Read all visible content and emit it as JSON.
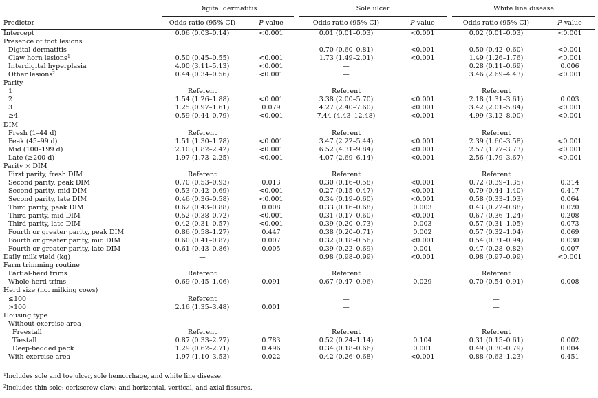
{
  "groups": [
    "Digital dermatitis",
    "Sole ulcer",
    "White line disease"
  ],
  "columns": {
    "predictor": "Predictor",
    "or": "Odds ratio (95% CI)",
    "p_prefix": "P",
    "p_suffix": "-value"
  },
  "rows": [
    {
      "label": "Intercept",
      "level": 0,
      "v": [
        "0.06 (0.03–0.14)",
        "<0.001",
        "0.01 (0.01–0.03)",
        "<0.001",
        "0.02 (0.01–0.03)",
        "<0.001"
      ]
    },
    {
      "label": "Presence of foot lesions",
      "level": 0,
      "v": [
        "",
        "",
        "",
        "",
        "",
        ""
      ]
    },
    {
      "label": "Digital dermatitis",
      "level": 1,
      "v": [
        "—",
        "",
        "0.70 (0.60–0.81)",
        "<0.001",
        "0.50 (0.42–0.60)",
        "<0.001"
      ]
    },
    {
      "label": "Claw horn lesions",
      "sup": "1",
      "level": 1,
      "v": [
        "0.50 (0.45–0.55)",
        "<0.001",
        "1.73 (1.49–2.01)",
        "<0.001",
        "1.49 (1.26–1.76)",
        "<0.001"
      ]
    },
    {
      "label": "Interdigital hyperplasia",
      "level": 1,
      "v": [
        "4.00 (3.11–5.13)",
        "<0.001",
        "—",
        "",
        "0.28 (0.11–0.69)",
        "0.006"
      ]
    },
    {
      "label": "Other lesions",
      "sup": "2",
      "level": 1,
      "v": [
        "0.44 (0.34–0.56)",
        "<0.001",
        "—",
        "",
        "3.46 (2.69–4.43)",
        "<0.001"
      ]
    },
    {
      "label": "Parity",
      "level": 0,
      "v": [
        "",
        "",
        "",
        "",
        "",
        ""
      ]
    },
    {
      "label": "1",
      "level": 1,
      "v": [
        "Referent",
        "",
        "Referent",
        "",
        "Referent",
        ""
      ]
    },
    {
      "label": "2",
      "level": 1,
      "v": [
        "1.54 (1.26–1.88)",
        "<0.001",
        "3.38 (2.00–5.70)",
        "<0.001",
        "2.18 (1.31–3.61)",
        "0.003"
      ]
    },
    {
      "label": "3",
      "level": 1,
      "v": [
        "1.25 (0.97–1.61)",
        "0.079",
        "4.27 (2.40–7.60)",
        "<0.001",
        "3.42 (2.01–5.84)",
        "<0.001"
      ]
    },
    {
      "label": "≥4",
      "level": 1,
      "v": [
        "0.59 (0.44–0.79)",
        "<0.001",
        "7.44 (4.43–12.48)",
        "<0.001",
        "4.99 (3.12–8.00)",
        "<0.001"
      ]
    },
    {
      "label": "DIM",
      "level": 0,
      "v": [
        "",
        "",
        "",
        "",
        "",
        ""
      ]
    },
    {
      "label": "Fresh (1–44 d)",
      "level": 1,
      "v": [
        "Referent",
        "",
        "Referent",
        "",
        "Referent",
        ""
      ]
    },
    {
      "label": "Peak (45–99 d)",
      "level": 1,
      "v": [
        "1.51 (1.30–1.78)",
        "<0.001",
        "3.47 (2.22–5.44)",
        "<0.001",
        "2.39 (1.60–3.58)",
        "<0.001"
      ]
    },
    {
      "label": "Mid (100–199 d)",
      "level": 1,
      "v": [
        "2.10 (1.82–2.42)",
        "<0.001",
        "6.52 (4.31–9.84)",
        "<0.001",
        "2.57 (1.77–3.73)",
        "<0.001"
      ]
    },
    {
      "label": "Late (≥200 d)",
      "level": 1,
      "v": [
        "1.97 (1.73–2.25)",
        "<0.001",
        "4.07 (2.69–6.14)",
        "<0.001",
        "2.56 (1.79–3.67)",
        "<0.001"
      ]
    },
    {
      "label": "Parity × DIM",
      "level": 0,
      "v": [
        "",
        "",
        "",
        "",
        "",
        ""
      ]
    },
    {
      "label": "First parity, fresh DIM",
      "level": 1,
      "v": [
        "Referent",
        "",
        "Referent",
        "",
        "Referent",
        ""
      ]
    },
    {
      "label": "Second parity, peak DIM",
      "level": 1,
      "v": [
        "0.70 (0.53–0.93)",
        "0.013",
        "0.30 (0.16–0.58)",
        "<0.001",
        "0.72 (0.39–1.35)",
        "0.314"
      ]
    },
    {
      "label": "Second parity, mid DIM",
      "level": 1,
      "v": [
        "0.53 (0.42–0.69)",
        "<0.001",
        "0.27 (0.15–0.47)",
        "<0.001",
        "0.79 (0.44–1.40)",
        "0.417"
      ]
    },
    {
      "label": "Second parity, late DIM",
      "level": 1,
      "v": [
        "0.46 (0.36–0.58)",
        "<0.001",
        "0.34 (0.19–0.60)",
        "<0.001",
        "0.58 (0.33–1.03)",
        "0.064"
      ]
    },
    {
      "label": "Third parity, peak DIM",
      "level": 1,
      "v": [
        "0.62 (0.43–0.88)",
        "0.008",
        "0.33 (0.16–0.68)",
        "0.003",
        "0.43 (0.22–0.88)",
        "0.020"
      ]
    },
    {
      "label": "Third parity, mid DIM",
      "level": 1,
      "v": [
        "0.52 (0.38–0.72)",
        "<0.001",
        "0.31 (0.17–0.60)",
        "<0.001",
        "0.67 (0.36–1.24)",
        "0.208"
      ]
    },
    {
      "label": "Third parity, late DIM",
      "level": 1,
      "v": [
        "0.42 (0.31–0.57)",
        "<0.001",
        "0.39 (0.20–0.73)",
        "0.003",
        "0.57 (0.31–1.05)",
        "0.073"
      ]
    },
    {
      "label": "Fourth or greater parity, peak  DIM",
      "level": 1,
      "v": [
        "0.86 (0.58–1.27)",
        "0.447",
        "0.38 (0.20–0.71)",
        "0.002",
        "0.57 (0.32–1.04)",
        "0.069"
      ]
    },
    {
      "label": "Fourth or greater parity, mid DIM",
      "level": 1,
      "v": [
        "0.60 (0.41–0.87)",
        "0.007",
        "0.32 (0.18–0.56)",
        "<0.001",
        "0.54 (0.31–0.94)",
        "0.030"
      ]
    },
    {
      "label": "Fourth or greater parity, late DIM",
      "level": 1,
      "v": [
        "0.61 (0.43–0.86)",
        "0.005",
        "0.39 (0.22–0.69)",
        "0.001",
        "0.47 (0.28–0.82)",
        "0.007"
      ]
    },
    {
      "label": "Daily milk yield (kg)",
      "level": 0,
      "v": [
        "—",
        "",
        "0.98 (0.98–0.99)",
        "<0.001",
        "0.98 (0.97–0.99)",
        "<0.001"
      ]
    },
    {
      "label": "Farm trimming routine",
      "level": 0,
      "v": [
        "",
        "",
        "",
        "",
        "",
        ""
      ]
    },
    {
      "label": "Partial-herd trims",
      "level": 1,
      "v": [
        "Referent",
        "",
        "Referent",
        "",
        "Referent",
        ""
      ]
    },
    {
      "label": "Whole-herd trims",
      "level": 1,
      "v": [
        "0.69 (0.45–1.06)",
        "0.091",
        "0.67 (0.47–0.96)",
        "0.029",
        "0.70 (0.54–0.91)",
        "0.008"
      ]
    },
    {
      "label": "Herd size (no. milking cows)",
      "level": 0,
      "v": [
        "",
        "",
        "",
        "",
        "",
        ""
      ]
    },
    {
      "label": "≤100",
      "level": 1,
      "v": [
        "Referent",
        "",
        "—",
        "",
        "—",
        ""
      ]
    },
    {
      "label": ">100",
      "level": 1,
      "v": [
        "2.16 (1.35–3.48)",
        "0.001",
        "—",
        "",
        "—",
        ""
      ]
    },
    {
      "label": "Housing type",
      "level": 0,
      "v": [
        "",
        "",
        "",
        "",
        "",
        ""
      ]
    },
    {
      "label": "Without exercise area",
      "level": 1,
      "v": [
        "",
        "",
        "",
        "",
        "",
        ""
      ]
    },
    {
      "label": "Freestall",
      "level": 2,
      "v": [
        "Referent",
        "",
        "Referent",
        "",
        "Referent",
        ""
      ]
    },
    {
      "label": "Tiestall",
      "level": 2,
      "v": [
        "0.87 (0.33–2.27)",
        "0.783",
        "0.52 (0.24–1.14)",
        "0.104",
        "0.31 (0.15–0.61)",
        "0.002"
      ]
    },
    {
      "label": "Deep-bedded pack",
      "level": 2,
      "v": [
        "1.29 (0.62–2.71)",
        "0.496",
        "0.34 (0.18–0.66)",
        "0.001",
        "0.49 (0.30–0.79)",
        "0.004"
      ]
    },
    {
      "label": "With exercise area",
      "level": 1,
      "v": [
        "1.97 (1.10–3.53)",
        "0.022",
        "0.42 (0.26–0.68)",
        "<0.001",
        "0.88 (0.63–1.23)",
        "0.451"
      ]
    }
  ],
  "footnotes": [
    {
      "mark": "1",
      "text": "Includes sole and toe ulcer, sole hemorrhage, and white line disease."
    },
    {
      "mark": "2",
      "text": "Includes thin sole; corkscrew claw; and horizontal, vertical, and axial fissures."
    }
  ]
}
